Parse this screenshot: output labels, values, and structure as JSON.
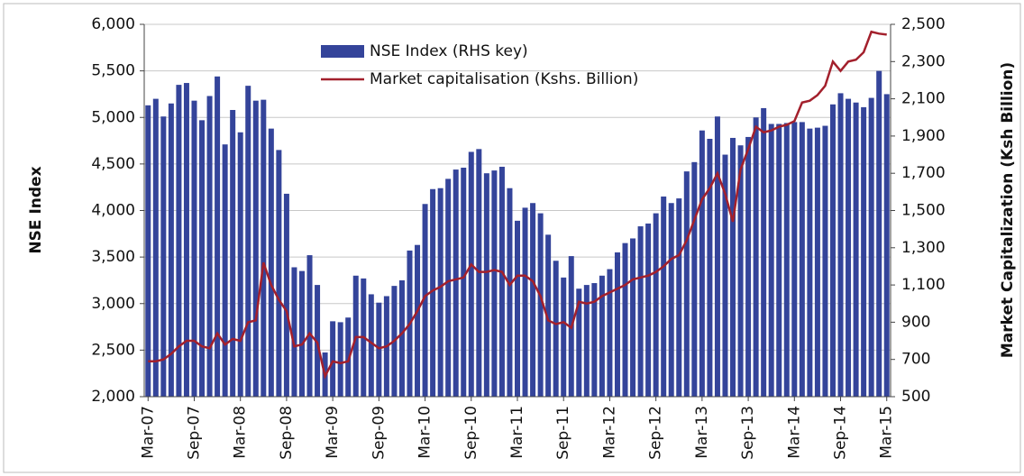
{
  "chart_data": {
    "type": "bar_line",
    "y_label": "NSE Index",
    "y2_label": "Market Capitalization (Ksh Billion)",
    "categories": [
      "Mar-07",
      null,
      null,
      null,
      null,
      null,
      "Sep-07",
      null,
      null,
      null,
      null,
      null,
      "Mar-08",
      null,
      null,
      null,
      null,
      null,
      "Sep-08",
      null,
      null,
      null,
      null,
      null,
      "Mar-09",
      null,
      null,
      null,
      null,
      null,
      "Sep-09",
      null,
      null,
      null,
      null,
      null,
      "Mar-10",
      null,
      null,
      null,
      null,
      null,
      "Sep-10",
      null,
      null,
      null,
      null,
      null,
      "Mar-11",
      null,
      null,
      null,
      null,
      null,
      "Sep-11",
      null,
      null,
      null,
      null,
      null,
      "Mar-12",
      null,
      null,
      null,
      null,
      null,
      "Sep-12",
      null,
      null,
      null,
      null,
      null,
      "Mar-13",
      null,
      null,
      null,
      null,
      null,
      "Sep-13",
      null,
      null,
      null,
      null,
      null,
      "Mar-14",
      null,
      null,
      null,
      null,
      null,
      "Sep-14",
      null,
      null,
      null,
      null,
      null,
      "Mar-15"
    ],
    "series": [
      {
        "name": "NSE Index  (RHS key)",
        "color": "#34449a",
        "type": "bar",
        "values": [
          5130,
          5200,
          5010,
          5150,
          5350,
          5370,
          5180,
          4970,
          5230,
          5440,
          4710,
          5080,
          4840,
          5340,
          5180,
          5190,
          4880,
          4650,
          4180,
          3390,
          3350,
          3520,
          3200,
          2475,
          2810,
          2800,
          2850,
          3300,
          3270,
          3100,
          3010,
          3080,
          3190,
          3250,
          3570,
          3630,
          4070,
          4230,
          4240,
          4340,
          4440,
          4460,
          4630,
          4660,
          4400,
          4430,
          4470,
          4240,
          3890,
          4030,
          4080,
          3970,
          3740,
          3460,
          3280,
          3510,
          3160,
          3200,
          3220,
          3300,
          3370,
          3550,
          3650,
          3700,
          3830,
          3860,
          3970,
          4150,
          4080,
          4130,
          4420,
          4520,
          4860,
          4770,
          5010,
          4600,
          4780,
          4700,
          4790,
          5000,
          5100,
          4930,
          4930,
          4940,
          4950,
          4950,
          4880,
          4890,
          4910,
          5140,
          5260,
          5200,
          5160,
          5110,
          5210,
          5500,
          5250
        ]
      },
      {
        "name": "Market capitalisation (Kshs. Billion)",
        "color": "#a3202c",
        "type": "line",
        "axis": "y2",
        "values": [
          690,
          690,
          700,
          730,
          770,
          800,
          800,
          770,
          760,
          840,
          780,
          810,
          800,
          900,
          910,
          1220,
          1100,
          1020,
          960,
          770,
          780,
          840,
          790,
          610,
          690,
          680,
          690,
          820,
          820,
          790,
          760,
          770,
          800,
          840,
          890,
          960,
          1040,
          1070,
          1090,
          1120,
          1130,
          1140,
          1210,
          1170,
          1170,
          1180,
          1170,
          1100,
          1150,
          1150,
          1120,
          1040,
          910,
          890,
          900,
          870,
          1010,
          1000,
          1010,
          1040,
          1060,
          1080,
          1100,
          1130,
          1140,
          1150,
          1170,
          1200,
          1240,
          1260,
          1340,
          1450,
          1560,
          1620,
          1700,
          1590,
          1440,
          1720,
          1830,
          1950,
          1920,
          1930,
          1950,
          1960,
          1980,
          2080,
          2090,
          2120,
          2170,
          2300,
          2250,
          2300,
          2310,
          2350,
          2460,
          2450,
          2445
        ]
      }
    ],
    "ylim": [
      2000,
      6000
    ],
    "yticks": [
      {
        "value": 2000,
        "label": "2,000"
      },
      {
        "value": 2500,
        "label": "2,500"
      },
      {
        "value": 3000,
        "label": "3,000"
      },
      {
        "value": 3500,
        "label": "3,500"
      },
      {
        "value": 4000,
        "label": "4,000"
      },
      {
        "value": 4500,
        "label": "4,500"
      },
      {
        "value": 5000,
        "label": "5,000"
      },
      {
        "value": 5500,
        "label": "5,500"
      },
      {
        "value": 6000,
        "label": "6,000"
      }
    ],
    "y2lim": [
      500,
      2500
    ],
    "y2ticks": [
      500,
      700,
      900,
      {
        "value": 1100,
        "label": "1,100"
      },
      {
        "value": 1300,
        "label": "1,300"
      },
      {
        "value": 1500,
        "label": "1,500"
      },
      {
        "value": 1700,
        "label": "1,700"
      },
      {
        "value": 1900,
        "label": "1,900"
      },
      {
        "value": 2100,
        "label": "2,100"
      },
      {
        "value": 2300,
        "label": "2,300"
      },
      {
        "value": 2500,
        "label": "2,500"
      }
    ],
    "grid": true
  }
}
